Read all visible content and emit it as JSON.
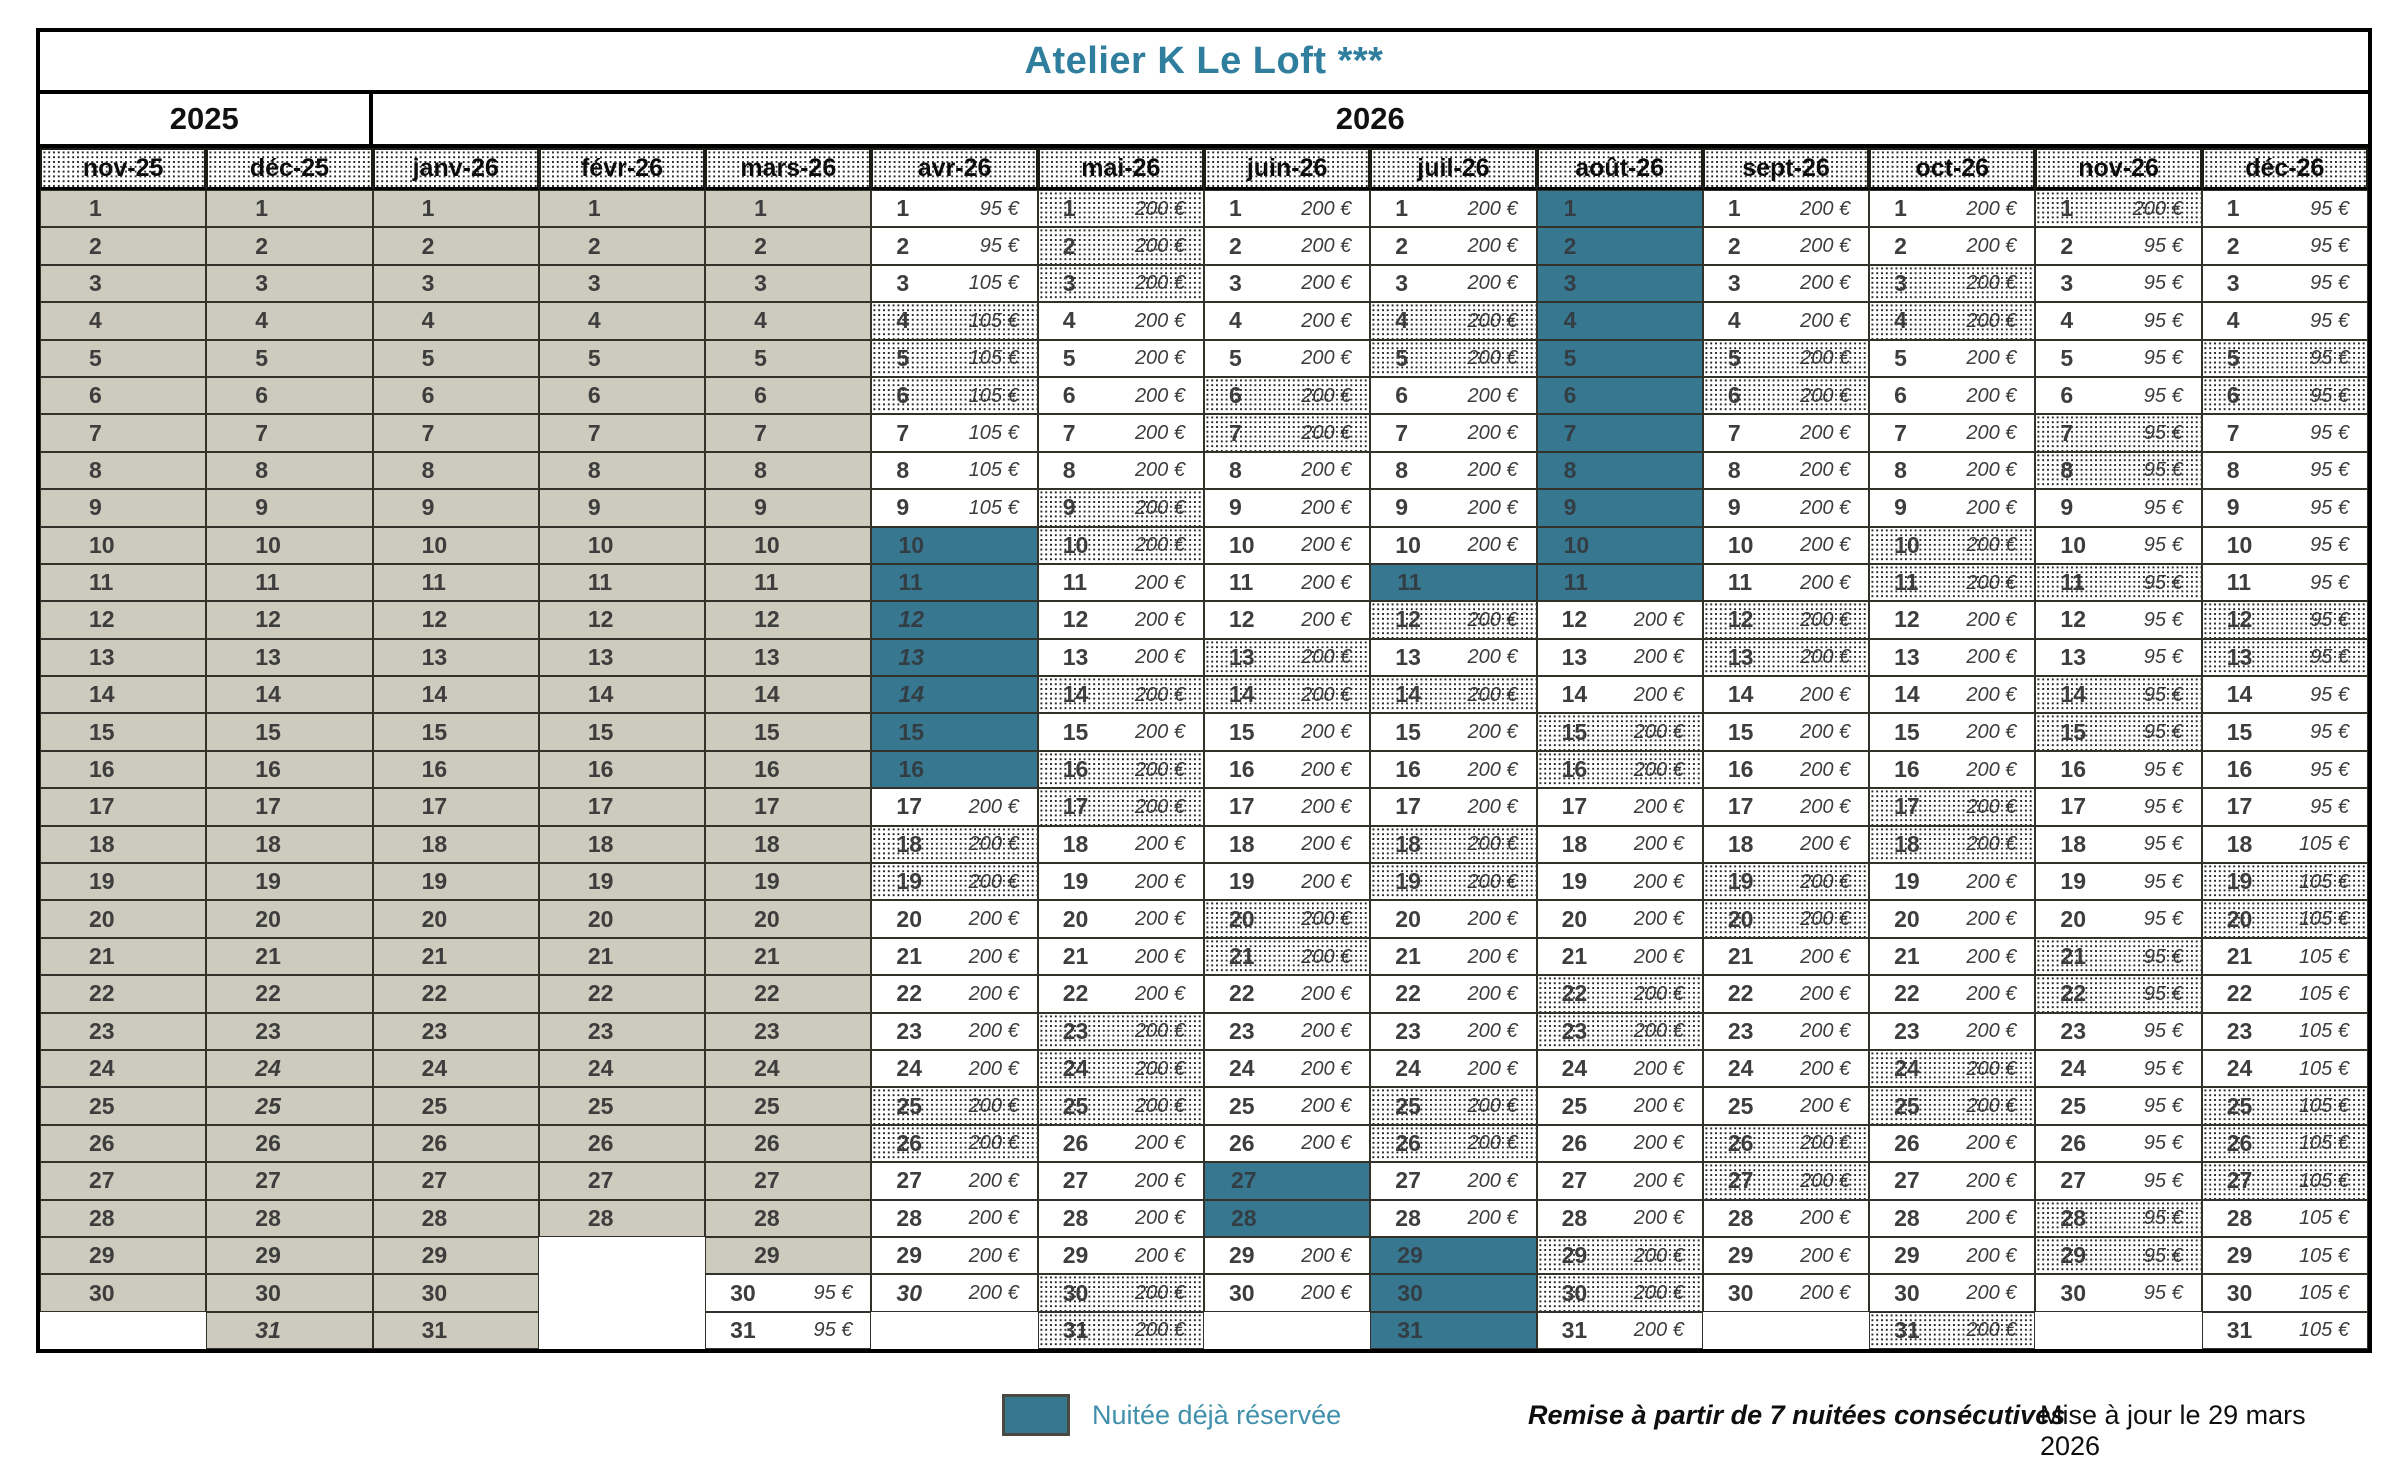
{
  "title": "Atelier K  Le Loft ***",
  "years": [
    {
      "label": "2025",
      "span": 2
    },
    {
      "label": "2026",
      "span": 12
    }
  ],
  "legend": {
    "reserved": "Nuitée déjà réservée",
    "discount": "Remise à partir de 7 nuitées consécutives",
    "updated": "Mise à jour le 29 mars 2026"
  },
  "colors": {
    "reserved_teal": "#37778F",
    "title_teal": "#2F7E9D",
    "legend_teal": "#4090AC",
    "past_beige": "#CCCBBD"
  },
  "months": [
    {
      "label": "nov-25",
      "days": 30,
      "past": true,
      "teal": [],
      "italic": [],
      "hatch": [
        1,
        2,
        8,
        9,
        11,
        15,
        16,
        22,
        23,
        29,
        30
      ],
      "prices": []
    },
    {
      "label": "déc-25",
      "days": 31,
      "past": true,
      "teal": [],
      "italic": [
        24,
        25,
        31
      ],
      "hatch": [
        6,
        7,
        13,
        14,
        20,
        21,
        27,
        28
      ],
      "prices": []
    },
    {
      "label": "janv-26",
      "days": 31,
      "past": true,
      "teal": [],
      "italic": [],
      "hatch": [
        3,
        4,
        10,
        11,
        17,
        18,
        24,
        25,
        31
      ],
      "prices": []
    },
    {
      "label": "févr-26",
      "days": 28,
      "past": true,
      "teal": [],
      "italic": [],
      "hatch": [
        1,
        7,
        8,
        14,
        15,
        21,
        22,
        28
      ],
      "prices": []
    },
    {
      "label": "mars-26",
      "days": 31,
      "past": true,
      "active_from": 30,
      "teal": [],
      "italic": [],
      "hatch": [
        1,
        7,
        8,
        14,
        15,
        21,
        22,
        28,
        29
      ],
      "prices": [
        [
          30,
          31,
          "95 €"
        ]
      ]
    },
    {
      "label": "avr-26",
      "days": 30,
      "past": false,
      "teal": [
        10,
        11,
        12,
        13,
        14,
        15,
        16
      ],
      "italic": [
        12,
        13,
        14,
        30
      ],
      "hatch": [
        4,
        5,
        6,
        11,
        12,
        18,
        19,
        25,
        26
      ],
      "prices": [
        [
          1,
          2,
          "95 €"
        ],
        [
          3,
          9,
          "105 €"
        ],
        [
          17,
          30,
          "200 €"
        ]
      ]
    },
    {
      "label": "mai-26",
      "days": 31,
      "past": false,
      "teal": [],
      "italic": [],
      "hatch": [
        1,
        2,
        3,
        9,
        10,
        14,
        16,
        17,
        23,
        24,
        25,
        30,
        31
      ],
      "prices": [
        [
          1,
          31,
          "200 €"
        ]
      ]
    },
    {
      "label": "juin-26",
      "days": 30,
      "past": false,
      "teal": [
        27,
        28
      ],
      "italic": [],
      "hatch": [
        6,
        7,
        13,
        14,
        20,
        21,
        27,
        28
      ],
      "prices": [
        [
          1,
          30,
          "200 €"
        ]
      ]
    },
    {
      "label": "juil-26",
      "days": 31,
      "past": false,
      "teal": [
        11,
        29,
        30,
        31
      ],
      "italic": [],
      "hatch": [
        4,
        5,
        12,
        14,
        18,
        19,
        25,
        26
      ],
      "prices": [
        [
          1,
          31,
          "200 €"
        ]
      ]
    },
    {
      "label": "août-26",
      "days": 31,
      "past": false,
      "teal": [
        1,
        2,
        3,
        4,
        5,
        6,
        7,
        8,
        9,
        10,
        11
      ],
      "italic": [],
      "hatch": [
        1,
        2,
        8,
        9,
        15,
        16,
        22,
        23,
        29,
        30
      ],
      "prices": [
        [
          12,
          31,
          "200 €"
        ]
      ]
    },
    {
      "label": "sept-26",
      "days": 30,
      "past": false,
      "teal": [],
      "italic": [],
      "hatch": [
        5,
        6,
        12,
        13,
        19,
        20,
        26,
        27
      ],
      "prices": [
        [
          1,
          30,
          "200 €"
        ]
      ]
    },
    {
      "label": "oct-26",
      "days": 31,
      "past": false,
      "teal": [],
      "italic": [],
      "hatch": [
        3,
        4,
        10,
        11,
        17,
        18,
        24,
        25,
        31
      ],
      "prices": [
        [
          1,
          31,
          "200 €"
        ]
      ]
    },
    {
      "label": "nov-26",
      "days": 30,
      "past": false,
      "teal": [],
      "italic": [],
      "hatch": [
        1,
        7,
        8,
        11,
        14,
        15,
        21,
        22,
        28,
        29
      ],
      "prices": [
        [
          1,
          1,
          "200 €"
        ],
        [
          2,
          30,
          "95 €"
        ]
      ]
    },
    {
      "label": "déc-26",
      "days": 31,
      "past": false,
      "teal": [],
      "italic": [],
      "hatch": [
        5,
        6,
        12,
        13,
        19,
        20,
        25,
        26,
        27
      ],
      "prices": [
        [
          1,
          17,
          "95 €"
        ],
        [
          18,
          31,
          "105 €"
        ]
      ]
    }
  ]
}
